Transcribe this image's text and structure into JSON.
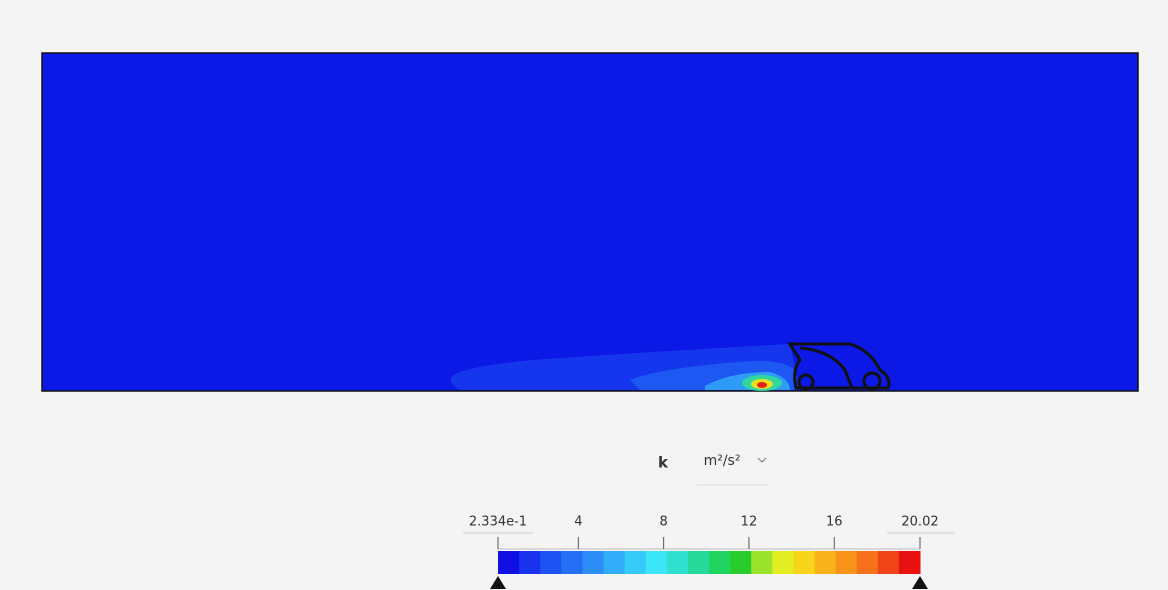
{
  "field": "k",
  "unit": "m²/s²",
  "legend": {
    "min": {
      "value": 0.2334,
      "label": "2.334e-1"
    },
    "max": 20.02,
    "ticks": [
      4,
      8,
      12,
      16
    ],
    "colors": [
      "#1010e4",
      "#1832ee",
      "#1e52f2",
      "#2470f4",
      "#2a8ef6",
      "#30acf8",
      "#36caf9",
      "#3ce6f8",
      "#30e0d0",
      "#26d89a",
      "#20d460",
      "#28cc2c",
      "#9ce42c",
      "#e2ee22",
      "#f8d41a",
      "#f8b41a",
      "#f8941a",
      "#f6721a",
      "#f04418",
      "#e81010"
    ]
  }
}
